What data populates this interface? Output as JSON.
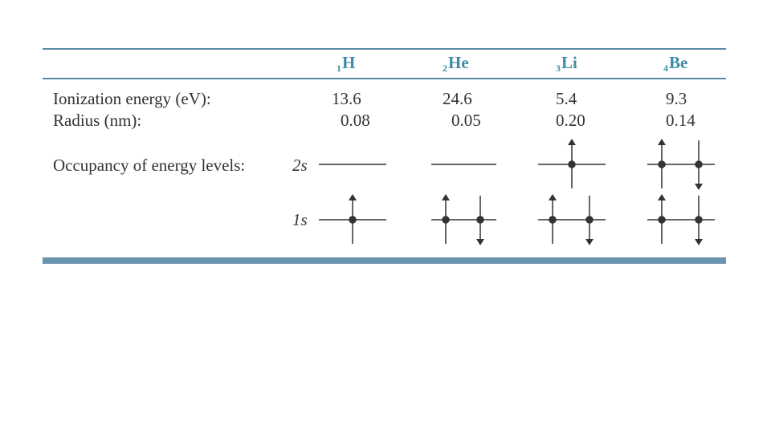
{
  "table": {
    "elements": [
      {
        "number": "1",
        "symbol": "H",
        "ionization": "13.6",
        "radius": "0.08",
        "occ_2s": [],
        "occ_1s": [
          "up"
        ]
      },
      {
        "number": "2",
        "symbol": "He",
        "ionization": "24.6",
        "radius": "0.05",
        "occ_2s": [],
        "occ_1s": [
          "up",
          "down"
        ]
      },
      {
        "number": "3",
        "symbol": "Li",
        "ionization": "5.4",
        "radius": "0.20",
        "occ_2s": [
          "up"
        ],
        "occ_1s": [
          "up",
          "down"
        ]
      },
      {
        "number": "4",
        "symbol": "Be",
        "ionization": "9.3",
        "radius": "0.14",
        "occ_2s": [
          "up",
          "down"
        ],
        "occ_1s": [
          "up",
          "down"
        ]
      }
    ],
    "labels": {
      "ionization": "Ionization energy (eV):",
      "radius": "Radius (nm):",
      "occupancy": "Occupancy of energy levels:"
    },
    "levels": {
      "upper": "2s",
      "lower": "1s"
    }
  },
  "colors": {
    "accent": "#3f8ca8",
    "rule": "#5b8aa6",
    "text": "#333333"
  }
}
